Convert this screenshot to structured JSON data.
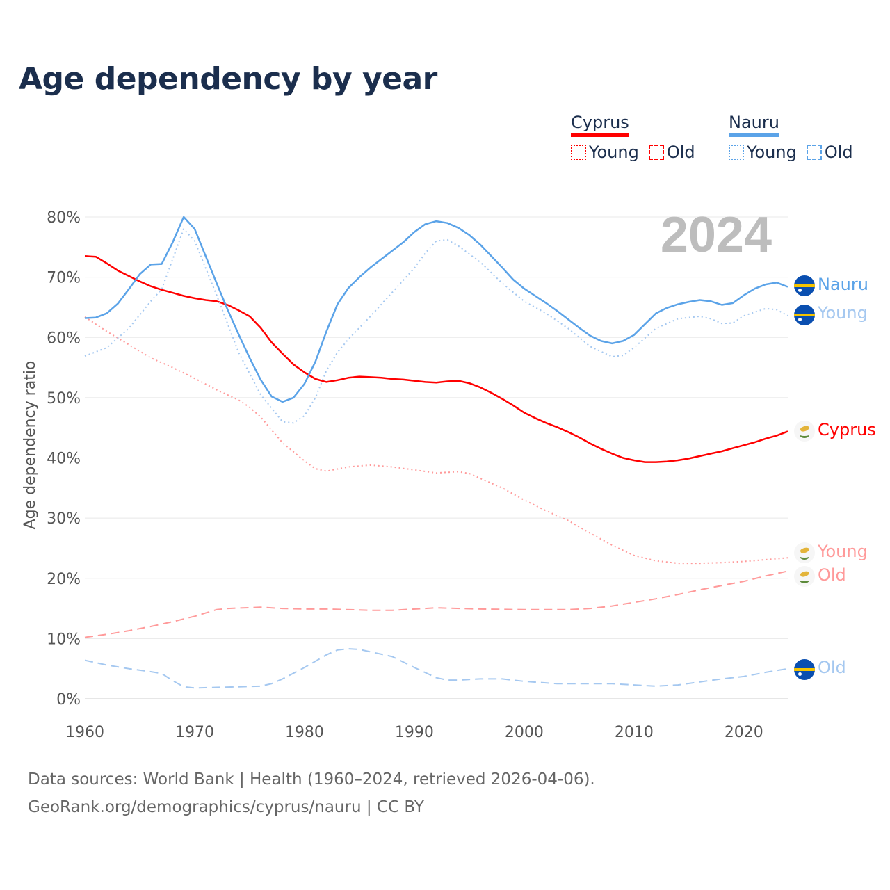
{
  "title": "Age dependency by year",
  "legend": {
    "groups": [
      {
        "name": "Cyprus",
        "young": "Young",
        "old": "Old",
        "color": "#ff0000"
      },
      {
        "name": "Nauru",
        "young": "Young",
        "old": "Old",
        "color": "#5ba3e8"
      }
    ]
  },
  "year_watermark": "2024",
  "end_labels": {
    "nauru": "Nauru",
    "nauru_young": "Young",
    "cyprus": "Cyprus",
    "cyprus_young": "Young",
    "cyprus_old": "Old",
    "nauru_old": "Old"
  },
  "source": {
    "line1": "Data sources: World Bank | Health (1960–2024, retrieved 2026-04-06).",
    "line2": "GeoRank.org/demographics/cyprus/nauru | CC BY"
  },
  "chart_data": {
    "type": "line",
    "title": "Age dependency by year",
    "xlabel": "",
    "ylabel": "Age dependency ratio",
    "xlim": [
      1960,
      2024
    ],
    "ylim": [
      0,
      80
    ],
    "xticks": [
      "1960",
      "1970",
      "1980",
      "1990",
      "2000",
      "2010",
      "2020"
    ],
    "yticks": [
      "0%",
      "10%",
      "20%",
      "30%",
      "40%",
      "50%",
      "60%",
      "70%",
      "80%"
    ],
    "grid": true,
    "legend_position": "top-right",
    "series": [
      {
        "name": "Cyprus",
        "style": "solid",
        "color": "#ff0000",
        "points": [
          [
            1960,
            73.5
          ],
          [
            1961,
            73.4
          ],
          [
            1962,
            72.3
          ],
          [
            1963,
            71.1
          ],
          [
            1964,
            70.2
          ],
          [
            1965,
            69.3
          ],
          [
            1966,
            68.5
          ],
          [
            1967,
            67.9
          ],
          [
            1968,
            67.4
          ],
          [
            1969,
            66.9
          ],
          [
            1970,
            66.5
          ],
          [
            1971,
            66.2
          ],
          [
            1972,
            66
          ],
          [
            1973,
            65.4
          ],
          [
            1974,
            64.5
          ],
          [
            1975,
            63.5
          ],
          [
            1976,
            61.6
          ],
          [
            1977,
            59.2
          ],
          [
            1978,
            57.3
          ],
          [
            1979,
            55.5
          ],
          [
            1980,
            54.2
          ],
          [
            1981,
            53.1
          ],
          [
            1982,
            52.6
          ],
          [
            1983,
            52.9
          ],
          [
            1984,
            53.3
          ],
          [
            1985,
            53.5
          ],
          [
            1986,
            53.4
          ],
          [
            1987,
            53.3
          ],
          [
            1988,
            53.1
          ],
          [
            1989,
            53
          ],
          [
            1990,
            52.8
          ],
          [
            1991,
            52.6
          ],
          [
            1992,
            52.5
          ],
          [
            1993,
            52.7
          ],
          [
            1994,
            52.8
          ],
          [
            1995,
            52.4
          ],
          [
            1996,
            51.7
          ],
          [
            1997,
            50.8
          ],
          [
            1998,
            49.8
          ],
          [
            1999,
            48.7
          ],
          [
            2000,
            47.5
          ],
          [
            2001,
            46.6
          ],
          [
            2002,
            45.8
          ],
          [
            2003,
            45.1
          ],
          [
            2004,
            44.3
          ],
          [
            2005,
            43.4
          ],
          [
            2006,
            42.4
          ],
          [
            2007,
            41.5
          ],
          [
            2008,
            40.7
          ],
          [
            2009,
            40
          ],
          [
            2010,
            39.6
          ],
          [
            2011,
            39.3
          ],
          [
            2012,
            39.3
          ],
          [
            2013,
            39.4
          ],
          [
            2014,
            39.6
          ],
          [
            2015,
            39.9
          ],
          [
            2016,
            40.3
          ],
          [
            2017,
            40.7
          ],
          [
            2018,
            41.1
          ],
          [
            2019,
            41.6
          ],
          [
            2020,
            42.1
          ],
          [
            2021,
            42.6
          ],
          [
            2022,
            43.2
          ],
          [
            2023,
            43.7
          ],
          [
            2024,
            44.4
          ]
        ]
      },
      {
        "name": "Cyprus Young",
        "style": "dotted",
        "color": "#ff9a9a",
        "points": [
          [
            1960,
            63.4
          ],
          [
            1962,
            61
          ],
          [
            1964,
            58.8
          ],
          [
            1966,
            56.6
          ],
          [
            1968,
            55
          ],
          [
            1970,
            53.2
          ],
          [
            1972,
            51.3
          ],
          [
            1974,
            49.6
          ],
          [
            1975,
            48.4
          ],
          [
            1976,
            46.8
          ],
          [
            1978,
            42.5
          ],
          [
            1980,
            39.5
          ],
          [
            1981,
            38.2
          ],
          [
            1982,
            37.8
          ],
          [
            1984,
            38.5
          ],
          [
            1986,
            38.8
          ],
          [
            1988,
            38.5
          ],
          [
            1990,
            38
          ],
          [
            1992,
            37.5
          ],
          [
            1994,
            37.7
          ],
          [
            1995,
            37.4
          ],
          [
            1996,
            36.6
          ],
          [
            1998,
            35
          ],
          [
            2000,
            33
          ],
          [
            2002,
            31.2
          ],
          [
            2004,
            29.6
          ],
          [
            2006,
            27.5
          ],
          [
            2008,
            25.5
          ],
          [
            2010,
            23.8
          ],
          [
            2012,
            22.9
          ],
          [
            2014,
            22.5
          ],
          [
            2016,
            22.5
          ],
          [
            2018,
            22.6
          ],
          [
            2020,
            22.8
          ],
          [
            2022,
            23.1
          ],
          [
            2024,
            23.4
          ]
        ]
      },
      {
        "name": "Cyprus Old",
        "style": "dashed",
        "color": "#ff9a9a",
        "points": [
          [
            1960,
            10.2
          ],
          [
            1962,
            10.7
          ],
          [
            1964,
            11.3
          ],
          [
            1966,
            12
          ],
          [
            1968,
            12.8
          ],
          [
            1970,
            13.7
          ],
          [
            1972,
            14.8
          ],
          [
            1973,
            15
          ],
          [
            1976,
            15.2
          ],
          [
            1978,
            15
          ],
          [
            1980,
            14.9
          ],
          [
            1982,
            14.9
          ],
          [
            1986,
            14.7
          ],
          [
            1988,
            14.7
          ],
          [
            1992,
            15.1
          ],
          [
            1996,
            14.9
          ],
          [
            2000,
            14.8
          ],
          [
            2004,
            14.8
          ],
          [
            2006,
            15
          ],
          [
            2008,
            15.4
          ],
          [
            2010,
            16
          ],
          [
            2012,
            16.6
          ],
          [
            2014,
            17.3
          ],
          [
            2016,
            18.1
          ],
          [
            2018,
            18.8
          ],
          [
            2020,
            19.5
          ],
          [
            2022,
            20.4
          ],
          [
            2024,
            21.2
          ]
        ]
      },
      {
        "name": "Nauru",
        "style": "solid",
        "color": "#5ba3e8",
        "points": [
          [
            1960,
            63.2
          ],
          [
            1961,
            63.3
          ],
          [
            1962,
            64
          ],
          [
            1963,
            65.6
          ],
          [
            1964,
            68
          ],
          [
            1965,
            70.5
          ],
          [
            1966,
            72.1
          ],
          [
            1967,
            72.2
          ],
          [
            1968,
            75.8
          ],
          [
            1969,
            80
          ],
          [
            1970,
            78
          ],
          [
            1971,
            73.5
          ],
          [
            1972,
            69
          ],
          [
            1973,
            64.6
          ],
          [
            1974,
            60.5
          ],
          [
            1975,
            56.6
          ],
          [
            1976,
            53
          ],
          [
            1977,
            50.2
          ],
          [
            1978,
            49.3
          ],
          [
            1979,
            50
          ],
          [
            1980,
            52.3
          ],
          [
            1981,
            56
          ],
          [
            1982,
            61
          ],
          [
            1983,
            65.5
          ],
          [
            1984,
            68.2
          ],
          [
            1985,
            70
          ],
          [
            1986,
            71.6
          ],
          [
            1987,
            73
          ],
          [
            1988,
            74.4
          ],
          [
            1989,
            75.8
          ],
          [
            1990,
            77.5
          ],
          [
            1991,
            78.8
          ],
          [
            1992,
            79.3
          ],
          [
            1993,
            79
          ],
          [
            1994,
            78.2
          ],
          [
            1995,
            77
          ],
          [
            1996,
            75.4
          ],
          [
            1997,
            73.5
          ],
          [
            1998,
            71.6
          ],
          [
            1999,
            69.6
          ],
          [
            2000,
            68.1
          ],
          [
            2001,
            66.9
          ],
          [
            2002,
            65.7
          ],
          [
            2003,
            64.4
          ],
          [
            2004,
            63
          ],
          [
            2005,
            61.6
          ],
          [
            2006,
            60.3
          ],
          [
            2007,
            59.4
          ],
          [
            2008,
            59
          ],
          [
            2009,
            59.4
          ],
          [
            2010,
            60.4
          ],
          [
            2011,
            62.2
          ],
          [
            2012,
            64
          ],
          [
            2013,
            64.9
          ],
          [
            2014,
            65.5
          ],
          [
            2015,
            65.9
          ],
          [
            2016,
            66.2
          ],
          [
            2017,
            66
          ],
          [
            2018,
            65.4
          ],
          [
            2019,
            65.7
          ],
          [
            2020,
            67
          ],
          [
            2021,
            68.1
          ],
          [
            2022,
            68.8
          ],
          [
            2023,
            69.1
          ],
          [
            2024,
            68.4
          ]
        ]
      },
      {
        "name": "Nauru Young",
        "style": "dotted",
        "color": "#a5c8f0",
        "points": [
          [
            1960,
            56.9
          ],
          [
            1962,
            58.3
          ],
          [
            1964,
            61.5
          ],
          [
            1966,
            66
          ],
          [
            1967,
            68
          ],
          [
            1968,
            73
          ],
          [
            1969,
            78
          ],
          [
            1970,
            76
          ],
          [
            1972,
            67
          ],
          [
            1974,
            57.5
          ],
          [
            1976,
            50.5
          ],
          [
            1978,
            46
          ],
          [
            1979,
            45.8
          ],
          [
            1980,
            47
          ],
          [
            1981,
            50
          ],
          [
            1982,
            54.5
          ],
          [
            1983,
            57.5
          ],
          [
            1984,
            59.7
          ],
          [
            1986,
            63.5
          ],
          [
            1988,
            67.5
          ],
          [
            1990,
            71.5
          ],
          [
            1991,
            74
          ],
          [
            1992,
            76
          ],
          [
            1993,
            76.2
          ],
          [
            1994,
            75.2
          ],
          [
            1996,
            72.5
          ],
          [
            1998,
            69
          ],
          [
            2000,
            66
          ],
          [
            2002,
            64
          ],
          [
            2004,
            61.5
          ],
          [
            2006,
            58.5
          ],
          [
            2008,
            56.8
          ],
          [
            2009,
            57
          ],
          [
            2010,
            58.3
          ],
          [
            2012,
            61.5
          ],
          [
            2014,
            63.1
          ],
          [
            2016,
            63.5
          ],
          [
            2017,
            63.1
          ],
          [
            2018,
            62.3
          ],
          [
            2019,
            62.4
          ],
          [
            2020,
            63.6
          ],
          [
            2022,
            64.8
          ],
          [
            2023,
            64.6
          ],
          [
            2024,
            63.6
          ]
        ]
      },
      {
        "name": "Nauru Old",
        "style": "dashed",
        "color": "#a5c8f0",
        "points": [
          [
            1960,
            6.4
          ],
          [
            1962,
            5.6
          ],
          [
            1964,
            5
          ],
          [
            1966,
            4.5
          ],
          [
            1967,
            4.2
          ],
          [
            1968,
            3
          ],
          [
            1969,
            2
          ],
          [
            1970,
            1.8
          ],
          [
            1972,
            1.9
          ],
          [
            1974,
            2
          ],
          [
            1976,
            2.1
          ],
          [
            1977,
            2.5
          ],
          [
            1978,
            3.3
          ],
          [
            1980,
            5.2
          ],
          [
            1982,
            7.3
          ],
          [
            1983,
            8.1
          ],
          [
            1984,
            8.3
          ],
          [
            1985,
            8.2
          ],
          [
            1986,
            7.8
          ],
          [
            1988,
            7
          ],
          [
            1990,
            5.2
          ],
          [
            1992,
            3.5
          ],
          [
            1993,
            3.1
          ],
          [
            1994,
            3.1
          ],
          [
            1996,
            3.3
          ],
          [
            1998,
            3.3
          ],
          [
            2000,
            2.9
          ],
          [
            2003,
            2.5
          ],
          [
            2006,
            2.5
          ],
          [
            2008,
            2.5
          ],
          [
            2010,
            2.3
          ],
          [
            2012,
            2.1
          ],
          [
            2014,
            2.3
          ],
          [
            2016,
            2.8
          ],
          [
            2018,
            3.3
          ],
          [
            2020,
            3.7
          ],
          [
            2022,
            4.4
          ],
          [
            2024,
            5
          ]
        ]
      }
    ]
  }
}
